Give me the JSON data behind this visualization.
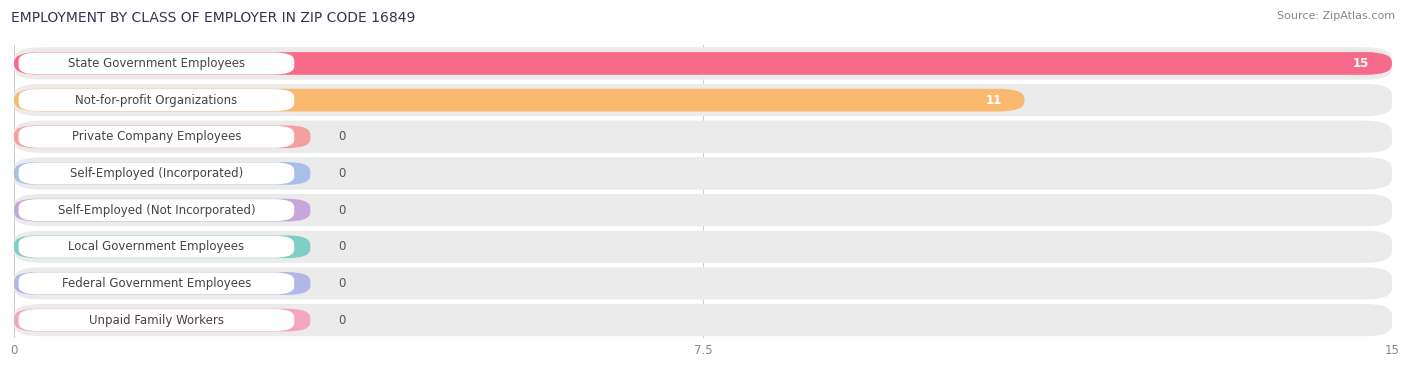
{
  "title": "EMPLOYMENT BY CLASS OF EMPLOYER IN ZIP CODE 16849",
  "source": "Source: ZipAtlas.com",
  "categories": [
    "State Government Employees",
    "Not-for-profit Organizations",
    "Private Company Employees",
    "Self-Employed (Incorporated)",
    "Self-Employed (Not Incorporated)",
    "Local Government Employees",
    "Federal Government Employees",
    "Unpaid Family Workers"
  ],
  "values": [
    15,
    11,
    0,
    0,
    0,
    0,
    0,
    0
  ],
  "bar_colors": [
    "#F76B8A",
    "#F9B96E",
    "#F4A0A0",
    "#A8C0E8",
    "#C5A8D8",
    "#7ECEC4",
    "#B0B8E8",
    "#F4A8C0"
  ],
  "row_bg_color": "#EBEBEB",
  "xlim": [
    0,
    15
  ],
  "xticks": [
    0,
    7.5,
    15
  ],
  "value_label_color_inside": "#FFFFFF",
  "value_label_color_outside": "#555555",
  "title_fontsize": 10,
  "source_fontsize": 8,
  "bar_label_fontsize": 8.5,
  "value_fontsize": 8.5,
  "background_color": "#FFFFFF",
  "grid_color": "#CCCCCC",
  "title_color": "#333355",
  "source_color": "#888888",
  "tick_color": "#888888"
}
